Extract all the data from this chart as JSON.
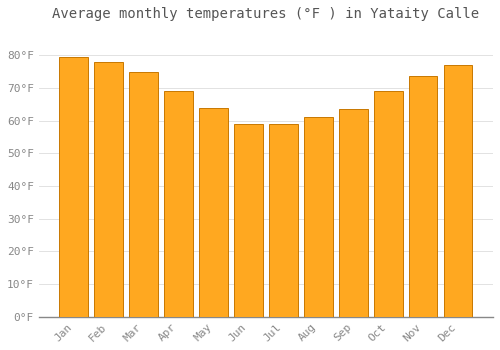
{
  "title": "Average monthly temperatures (°F ) in Yataity Calle",
  "months": [
    "Jan",
    "Feb",
    "Mar",
    "Apr",
    "May",
    "Jun",
    "Jul",
    "Aug",
    "Sep",
    "Oct",
    "Nov",
    "Dec"
  ],
  "values": [
    79.5,
    78.0,
    75.0,
    69.0,
    64.0,
    59.0,
    59.0,
    61.0,
    63.5,
    69.0,
    73.5,
    77.0
  ],
  "bar_color": "#FFA820",
  "bar_edge_color": "#C87800",
  "background_color": "#FFFFFF",
  "plot_bg_color": "#FFFFFF",
  "grid_color": "#DDDDDD",
  "text_color": "#888888",
  "title_color": "#555555",
  "ylim": [
    0,
    88
  ],
  "yticks": [
    0,
    10,
    20,
    30,
    40,
    50,
    60,
    70,
    80
  ],
  "title_fontsize": 10,
  "tick_fontsize": 8
}
